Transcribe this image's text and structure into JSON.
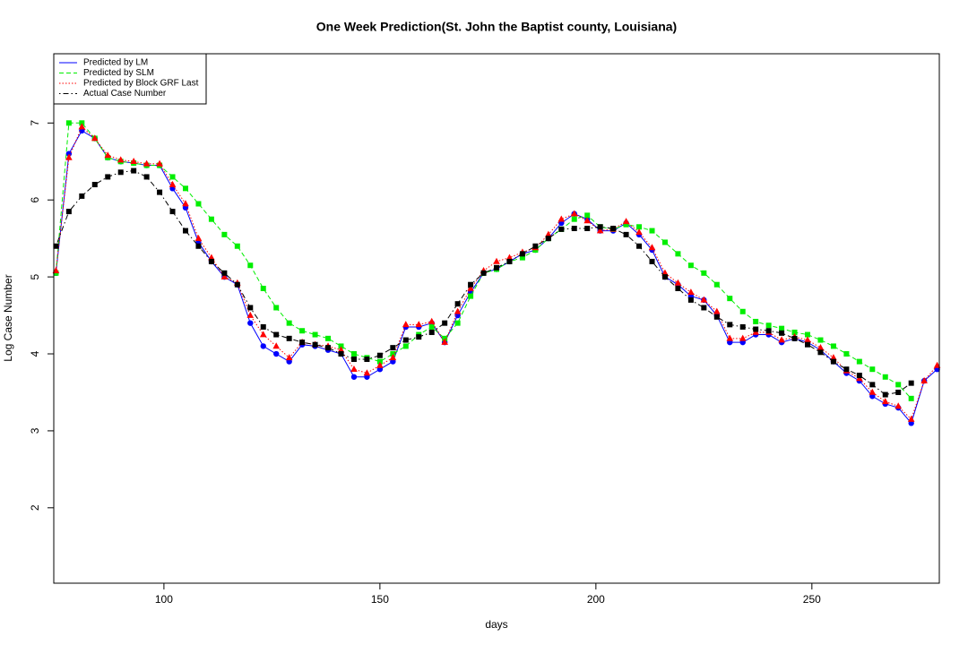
{
  "chart_data": {
    "type": "line",
    "title": "One Week Prediction(St. John the Baptist county, Louisiana)",
    "xlabel": "days",
    "ylabel": "Log Case Number",
    "xlim": [
      74.5,
      279.5
    ],
    "ylim": [
      1.02,
      7.9
    ],
    "xticks": [
      100,
      150,
      200,
      250
    ],
    "yticks": [
      2,
      3,
      4,
      5,
      6,
      7
    ],
    "legend": "top-left",
    "x": [
      75,
      78,
      81,
      84,
      87,
      90,
      93,
      96,
      99,
      102,
      105,
      108,
      111,
      114,
      117,
      120,
      123,
      126,
      129,
      132,
      135,
      138,
      141,
      144,
      147,
      150,
      153,
      156,
      159,
      162,
      165,
      168,
      171,
      174,
      177,
      180,
      183,
      186,
      189,
      192,
      195,
      198,
      201,
      204,
      207,
      210,
      213,
      216,
      219,
      222,
      225,
      228,
      231,
      234,
      237,
      240,
      243,
      246,
      249,
      252,
      255,
      258,
      261,
      264,
      267,
      270,
      273,
      276,
      279
    ],
    "series": [
      {
        "name": "Predicted by LM",
        "color": "#0000ff",
        "line_style": "solid",
        "marker": "circle",
        "values": [
          5.05,
          6.6,
          6.9,
          6.8,
          6.55,
          6.5,
          6.48,
          6.45,
          6.45,
          6.15,
          5.9,
          5.45,
          5.2,
          5.0,
          4.9,
          4.4,
          4.1,
          4.0,
          3.9,
          4.12,
          4.1,
          4.05,
          4.0,
          3.7,
          3.7,
          3.8,
          3.9,
          4.35,
          4.35,
          4.4,
          4.15,
          4.5,
          4.8,
          5.05,
          5.1,
          5.2,
          5.3,
          5.35,
          5.5,
          5.7,
          5.82,
          5.75,
          5.6,
          5.6,
          5.7,
          5.55,
          5.35,
          5.0,
          4.9,
          4.75,
          4.7,
          4.5,
          4.15,
          4.15,
          4.25,
          4.25,
          4.15,
          4.2,
          4.15,
          4.05,
          3.9,
          3.75,
          3.65,
          3.45,
          3.35,
          3.3,
          3.1,
          3.65,
          3.8
        ]
      },
      {
        "name": "Predicted by SLM",
        "color": "#00ee00",
        "line_style": "dashed",
        "marker": "square",
        "values": [
          5.05,
          7.0,
          7.0,
          6.8,
          6.55,
          6.5,
          6.48,
          6.45,
          6.45,
          6.3,
          6.15,
          5.95,
          5.75,
          5.55,
          5.4,
          5.15,
          4.85,
          4.6,
          4.4,
          4.3,
          4.25,
          4.2,
          4.1,
          4.0,
          3.95,
          3.9,
          4.0,
          4.1,
          4.25,
          4.35,
          4.2,
          4.4,
          4.75,
          5.05,
          5.1,
          5.2,
          5.25,
          5.35,
          5.5,
          5.62,
          5.75,
          5.8,
          5.65,
          5.62,
          5.68,
          5.65,
          5.6,
          5.45,
          5.3,
          5.15,
          5.05,
          4.9,
          4.72,
          4.55,
          4.42,
          4.37,
          4.33,
          4.28,
          4.25,
          4.18,
          4.1,
          4.0,
          3.9,
          3.8,
          3.7,
          3.6,
          3.42,
          null,
          null
        ]
      },
      {
        "name": "Predicted by Block GRF Last",
        "color": "#ff0000",
        "line_style": "dotted",
        "marker": "triangle",
        "values": [
          5.08,
          6.55,
          6.95,
          6.8,
          6.58,
          6.52,
          6.5,
          6.47,
          6.47,
          6.2,
          5.95,
          5.5,
          5.25,
          5.0,
          4.92,
          4.5,
          4.25,
          4.1,
          3.95,
          4.15,
          4.12,
          4.1,
          4.05,
          3.8,
          3.75,
          3.85,
          3.95,
          4.38,
          4.38,
          4.42,
          4.15,
          4.55,
          4.85,
          5.08,
          5.2,
          5.25,
          5.32,
          5.38,
          5.55,
          5.75,
          5.82,
          5.73,
          5.6,
          5.62,
          5.72,
          5.58,
          5.38,
          5.05,
          4.92,
          4.8,
          4.7,
          4.55,
          4.2,
          4.2,
          4.28,
          4.28,
          4.18,
          4.22,
          4.18,
          4.08,
          3.95,
          3.78,
          3.68,
          3.5,
          3.38,
          3.32,
          3.15,
          3.65,
          3.85
        ]
      },
      {
        "name": "Actual Case Number",
        "color": "#000000",
        "line_style": "dotdash",
        "marker": "square",
        "values": [
          5.4,
          5.85,
          6.05,
          6.2,
          6.3,
          6.36,
          6.38,
          6.3,
          6.1,
          5.85,
          5.6,
          5.4,
          5.2,
          5.05,
          4.9,
          4.6,
          4.35,
          4.25,
          4.2,
          4.15,
          4.12,
          4.08,
          4.0,
          3.93,
          3.93,
          3.98,
          4.08,
          4.18,
          4.22,
          4.28,
          4.4,
          4.65,
          4.9,
          5.05,
          5.12,
          5.2,
          5.3,
          5.4,
          5.5,
          5.62,
          5.63,
          5.63,
          5.65,
          5.63,
          5.55,
          5.4,
          5.2,
          5.0,
          4.85,
          4.7,
          4.6,
          4.48,
          4.38,
          4.35,
          4.32,
          4.3,
          4.27,
          4.2,
          4.12,
          4.02,
          3.9,
          3.8,
          3.72,
          3.6,
          3.47,
          3.5,
          3.62,
          null,
          null
        ]
      }
    ]
  }
}
